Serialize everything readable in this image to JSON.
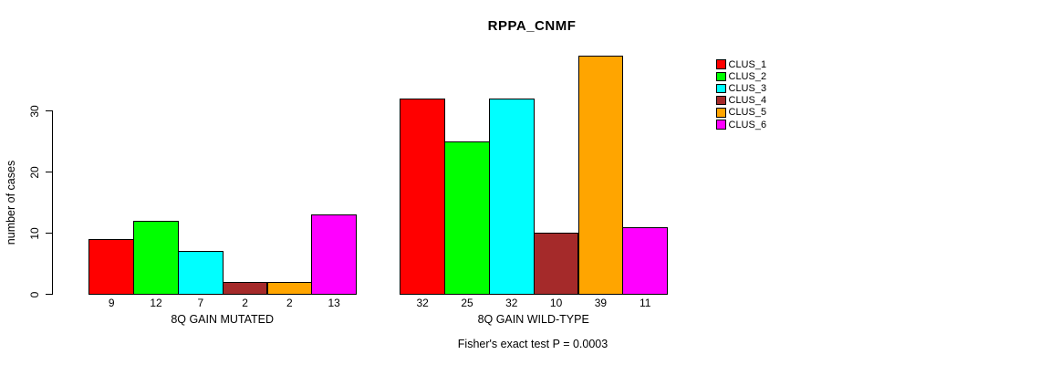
{
  "chart_data": {
    "type": "bar",
    "title": "RPPA_CNMF",
    "ylabel": "number of cases",
    "yticks": [
      0,
      10,
      20,
      30
    ],
    "ylim": [
      0,
      40
    ],
    "grid": false,
    "legend_position": "right",
    "categories": [
      "8Q GAIN MUTATED",
      "8Q GAIN WILD-TYPE"
    ],
    "series": [
      {
        "name": "CLUS_1",
        "color": "#FF0000",
        "values": [
          9,
          32
        ]
      },
      {
        "name": "CLUS_2",
        "color": "#00FF00",
        "values": [
          12,
          25
        ]
      },
      {
        "name": "CLUS_3",
        "color": "#00FFFF",
        "values": [
          7,
          32
        ]
      },
      {
        "name": "CLUS_4",
        "color": "#A52A2A",
        "values": [
          2,
          10
        ]
      },
      {
        "name": "CLUS_5",
        "color": "#FFA500",
        "values": [
          2,
          39
        ]
      },
      {
        "name": "CLUS_6",
        "color": "#FF00FF",
        "values": [
          13,
          11
        ]
      }
    ],
    "footer": "Fisher's exact test P = 0.0003",
    "axis_color": "#000000",
    "background_color": "#FFFFFF"
  }
}
